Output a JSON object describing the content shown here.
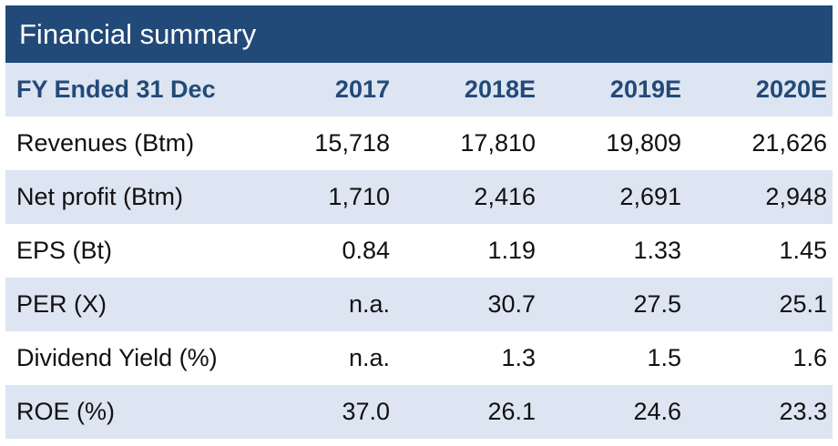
{
  "title": "Financial summary",
  "header": [
    "FY Ended 31 Dec",
    "2017",
    "2018E",
    "2019E",
    "2020E"
  ],
  "rows": [
    {
      "label": "Revenues (Btm)",
      "values": [
        "15,718",
        "17,810",
        "19,809",
        "21,626"
      ]
    },
    {
      "label": "Net profit (Btm)",
      "values": [
        "1,710",
        "2,416",
        "2,691",
        "2,948"
      ]
    },
    {
      "label": "EPS (Bt)",
      "values": [
        "0.84",
        "1.19",
        "1.33",
        "1.45"
      ]
    },
    {
      "label": "PER (X)",
      "values": [
        "n.a.",
        "30.7",
        "27.5",
        "25.1"
      ]
    },
    {
      "label": "Dividend Yield (%)",
      "values": [
        "n.a.",
        "1.3",
        "1.5",
        "1.6"
      ]
    },
    {
      "label": "ROE (%)",
      "values": [
        "37.0",
        "26.1",
        "24.6",
        "23.3"
      ]
    }
  ],
  "colors": {
    "title_bg": "#224a78",
    "header_text": "#224a78",
    "stripe": "#dde4f2"
  }
}
